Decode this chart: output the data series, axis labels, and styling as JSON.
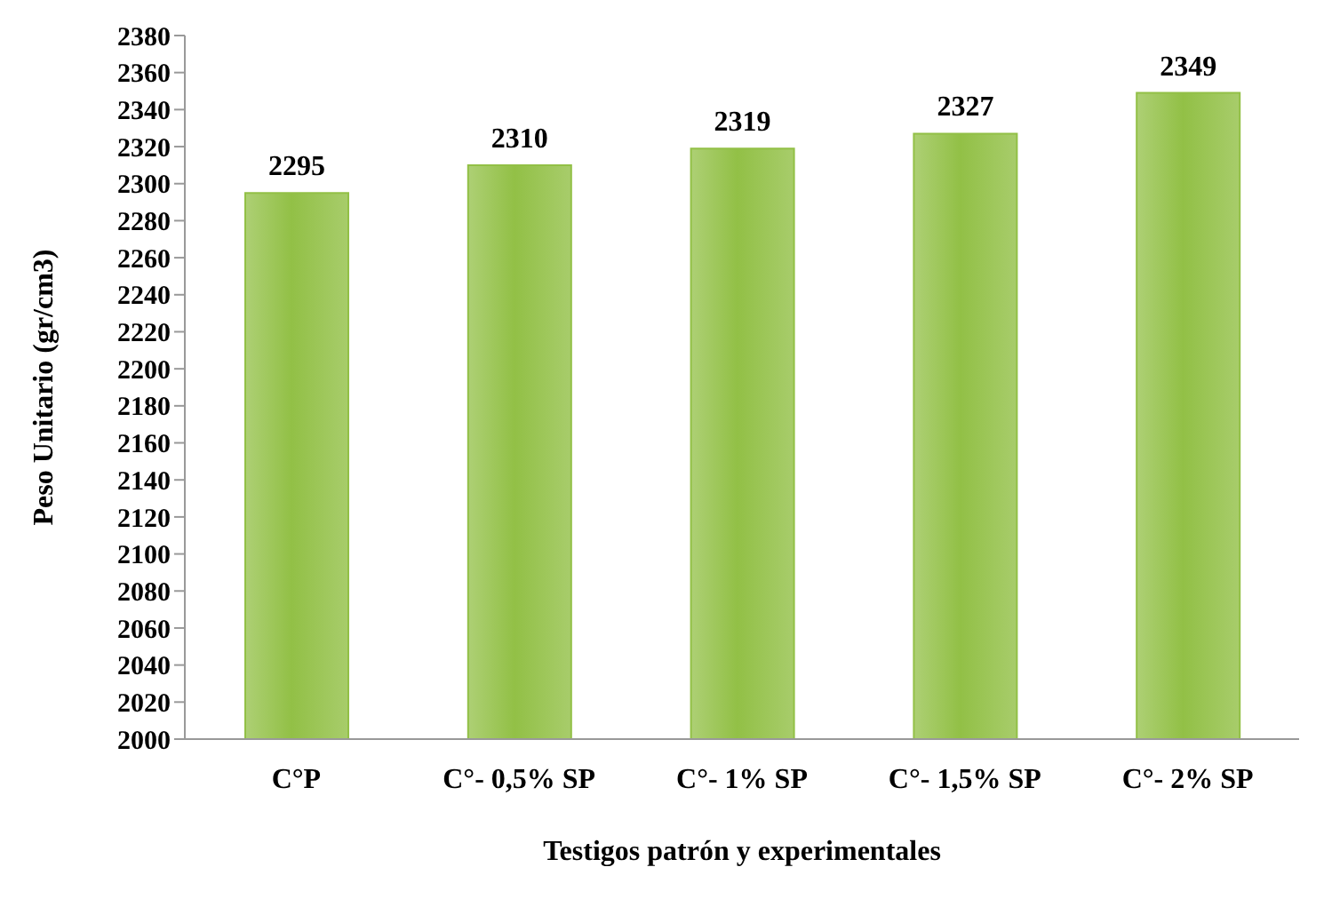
{
  "chart_data": {
    "type": "bar",
    "xlabel": "Testigos patrón y experimentales",
    "ylabel": "Peso Unitario (gr/cm3)",
    "categories": [
      "C°P",
      "C°- 0,5% SP",
      "C°- 1% SP",
      "C°- 1,5% SP",
      "C°- 2% SP"
    ],
    "values": [
      2295,
      2310,
      2319,
      2327,
      2349
    ],
    "color": "#92c046",
    "ylim": [
      2000,
      2380
    ],
    "yticks": [
      2000,
      2020,
      2040,
      2060,
      2080,
      2100,
      2120,
      2140,
      2160,
      2180,
      2200,
      2220,
      2240,
      2260,
      2280,
      2300,
      2320,
      2340,
      2360,
      2380
    ],
    "data_labels": true,
    "grid": false
  }
}
